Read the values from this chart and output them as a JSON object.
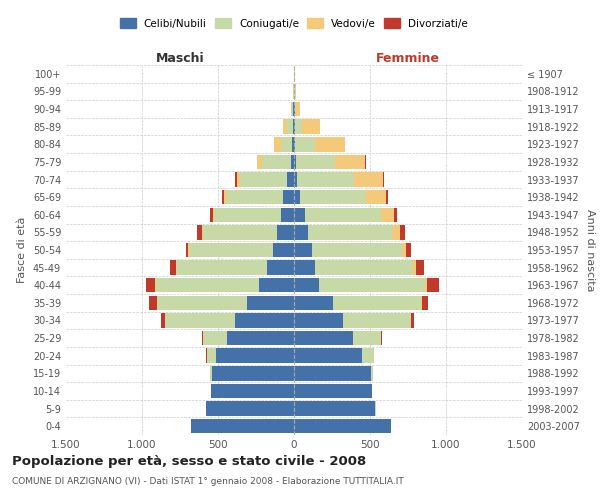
{
  "age_groups": [
    "0-4",
    "5-9",
    "10-14",
    "15-19",
    "20-24",
    "25-29",
    "30-34",
    "35-39",
    "40-44",
    "45-49",
    "50-54",
    "55-59",
    "60-64",
    "65-69",
    "70-74",
    "75-79",
    "80-84",
    "85-89",
    "90-94",
    "95-99",
    "100+"
  ],
  "birth_years": [
    "2003-2007",
    "1998-2002",
    "1993-1997",
    "1988-1992",
    "1983-1987",
    "1978-1982",
    "1973-1977",
    "1968-1972",
    "1963-1967",
    "1958-1962",
    "1953-1957",
    "1948-1952",
    "1943-1947",
    "1938-1942",
    "1933-1937",
    "1928-1932",
    "1923-1927",
    "1918-1922",
    "1913-1917",
    "1908-1912",
    "≤ 1907"
  ],
  "colors": {
    "celibi": "#4472a8",
    "coniugati": "#c8d9a8",
    "vedovi": "#f5c97a",
    "divorziati": "#c0392b"
  },
  "maschi": {
    "celibi": [
      680,
      580,
      545,
      540,
      510,
      440,
      390,
      310,
      230,
      175,
      140,
      110,
      85,
      70,
      45,
      18,
      12,
      8,
      4,
      3,
      2
    ],
    "coniugati": [
      0,
      2,
      4,
      10,
      65,
      160,
      460,
      590,
      680,
      600,
      550,
      490,
      440,
      380,
      310,
      195,
      75,
      35,
      10,
      2,
      0
    ],
    "vedovi": [
      0,
      0,
      0,
      0,
      0,
      0,
      0,
      1,
      2,
      3,
      5,
      5,
      8,
      12,
      22,
      28,
      45,
      28,
      5,
      0,
      0
    ],
    "divorziati": [
      0,
      0,
      0,
      0,
      2,
      4,
      28,
      52,
      62,
      35,
      18,
      32,
      22,
      12,
      8,
      4,
      0,
      0,
      0,
      0,
      0
    ]
  },
  "femmine": {
    "celibi": [
      640,
      535,
      510,
      505,
      450,
      390,
      325,
      255,
      165,
      140,
      118,
      90,
      70,
      42,
      22,
      12,
      8,
      5,
      4,
      3,
      2
    ],
    "coniugati": [
      0,
      2,
      4,
      12,
      75,
      185,
      445,
      580,
      700,
      640,
      590,
      555,
      500,
      430,
      370,
      260,
      130,
      48,
      10,
      2,
      0
    ],
    "vedovi": [
      0,
      0,
      0,
      0,
      0,
      0,
      2,
      4,
      10,
      20,
      32,
      55,
      85,
      135,
      195,
      195,
      195,
      115,
      28,
      5,
      2
    ],
    "divorziati": [
      0,
      0,
      0,
      0,
      2,
      3,
      18,
      45,
      78,
      58,
      28,
      32,
      22,
      12,
      8,
      8,
      5,
      0,
      0,
      0,
      0
    ]
  },
  "xlim": 1500,
  "xticks": [
    -1500,
    -1000,
    -500,
    0,
    500,
    1000,
    1500
  ],
  "xticklabels": [
    "1.500",
    "1.000",
    "500",
    "0",
    "500",
    "1.000",
    "1.500"
  ],
  "title": "Popolazione per età, sesso e stato civile - 2008",
  "subtitle": "COMUNE DI ARZIGNANO (VI) - Dati ISTAT 1° gennaio 2008 - Elaborazione TUTTITALIA.IT",
  "ylabel_left": "Fasce di età",
  "ylabel_right": "Anni di nascita",
  "label_maschi": "Maschi",
  "label_femmine": "Femmine",
  "legend_labels": [
    "Celibi/Nubili",
    "Coniugati/e",
    "Vedovi/e",
    "Divorziati/e"
  ],
  "background_color": "#ffffff",
  "grid_color": "#cccccc"
}
